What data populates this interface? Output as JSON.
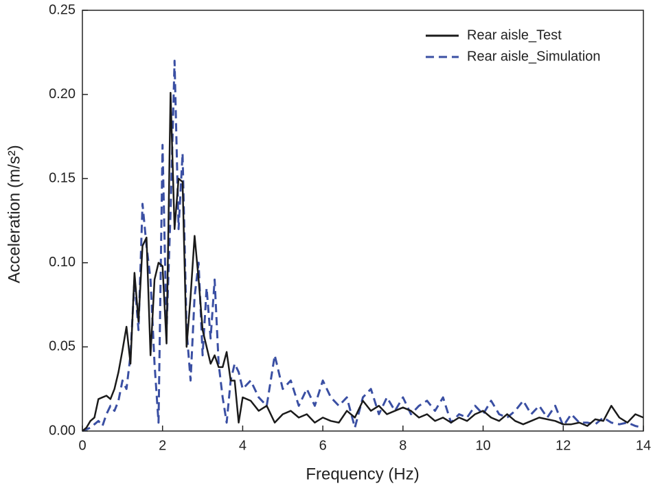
{
  "chart_data": {
    "type": "line",
    "xlabel": "Frequency (Hz)",
    "ylabel": "Acceleration (m/s²)",
    "x": [
      0,
      0.1,
      0.2,
      0.3,
      0.4,
      0.5,
      0.6,
      0.7,
      0.8,
      0.9,
      1.0,
      1.1,
      1.2,
      1.3,
      1.4,
      1.5,
      1.6,
      1.7,
      1.8,
      1.9,
      2.0,
      2.1,
      2.2,
      2.3,
      2.4,
      2.5,
      2.6,
      2.7,
      2.8,
      2.9,
      3.0,
      3.1,
      3.2,
      3.3,
      3.4,
      3.5,
      3.6,
      3.7,
      3.8,
      3.9,
      4.0,
      4.2,
      4.4,
      4.6,
      4.8,
      5.0,
      5.2,
      5.4,
      5.6,
      5.8,
      6.0,
      6.2,
      6.4,
      6.6,
      6.8,
      7.0,
      7.2,
      7.4,
      7.6,
      7.8,
      8.0,
      8.2,
      8.4,
      8.6,
      8.8,
      9.0,
      9.2,
      9.4,
      9.6,
      9.8,
      10.0,
      10.2,
      10.4,
      10.6,
      10.8,
      11.0,
      11.2,
      11.4,
      11.6,
      11.8,
      12.0,
      12.2,
      12.4,
      12.6,
      12.8,
      13.0,
      13.2,
      13.4,
      13.6,
      13.8,
      14.0
    ],
    "series": [
      {
        "name": "Rear aisle_Test",
        "color": "#1a1a1a",
        "dash": "solid",
        "values": [
          0,
          0.002,
          0.006,
          0.008,
          0.019,
          0.02,
          0.021,
          0.019,
          0.025,
          0.035,
          0.048,
          0.062,
          0.04,
          0.094,
          0.065,
          0.11,
          0.115,
          0.045,
          0.09,
          0.1,
          0.098,
          0.052,
          0.201,
          0.12,
          0.15,
          0.148,
          0.05,
          0.08,
          0.116,
          0.09,
          0.06,
          0.05,
          0.04,
          0.045,
          0.038,
          0.038,
          0.047,
          0.03,
          0.03,
          0.005,
          0.02,
          0.018,
          0.012,
          0.015,
          0.005,
          0.01,
          0.012,
          0.008,
          0.01,
          0.005,
          0.008,
          0.006,
          0.005,
          0.012,
          0.008,
          0.018,
          0.012,
          0.015,
          0.01,
          0.012,
          0.014,
          0.012,
          0.008,
          0.01,
          0.006,
          0.008,
          0.005,
          0.008,
          0.006,
          0.01,
          0.012,
          0.008,
          0.006,
          0.01,
          0.006,
          0.004,
          0.006,
          0.008,
          0.007,
          0.006,
          0.004,
          0.004,
          0.005,
          0.003,
          0.007,
          0.006,
          0.015,
          0.008,
          0.005,
          0.01,
          0.008
        ]
      },
      {
        "name": "Rear aisle_Simulation",
        "color": "#3a4fa3",
        "dash": "dashed",
        "values": [
          0,
          0.001,
          0.002,
          0.004,
          0.006,
          0.003,
          0.01,
          0.015,
          0.012,
          0.018,
          0.03,
          0.025,
          0.045,
          0.09,
          0.06,
          0.135,
          0.11,
          0.09,
          0.04,
          0.005,
          0.17,
          0.06,
          0.13,
          0.22,
          0.12,
          0.165,
          0.06,
          0.03,
          0.08,
          0.1,
          0.045,
          0.085,
          0.055,
          0.09,
          0.04,
          0.02,
          0.005,
          0.03,
          0.04,
          0.035,
          0.025,
          0.03,
          0.02,
          0.015,
          0.045,
          0.025,
          0.03,
          0.015,
          0.025,
          0.015,
          0.03,
          0.02,
          0.015,
          0.02,
          0.002,
          0.02,
          0.025,
          0.01,
          0.02,
          0.012,
          0.02,
          0.01,
          0.015,
          0.018,
          0.012,
          0.02,
          0.005,
          0.01,
          0.008,
          0.015,
          0.01,
          0.018,
          0.01,
          0.008,
          0.012,
          0.018,
          0.01,
          0.015,
          0.008,
          0.015,
          0.003,
          0.01,
          0.005,
          0.005,
          0.004,
          0.008,
          0.005,
          0.004,
          0.005,
          0.003,
          0.002
        ]
      }
    ],
    "xlim": [
      0,
      14
    ],
    "xticks": [
      0,
      2,
      4,
      6,
      8,
      10,
      12,
      14
    ],
    "ylim": [
      0,
      0.25
    ],
    "yticks": [
      {
        "value": 0,
        "label": "0.00"
      },
      0.05,
      {
        "value": 0.1,
        "label": "0.10"
      },
      0.15,
      {
        "value": 0.2,
        "label": "0.20"
      },
      0.25
    ],
    "grid": false,
    "legend": "upper right"
  }
}
